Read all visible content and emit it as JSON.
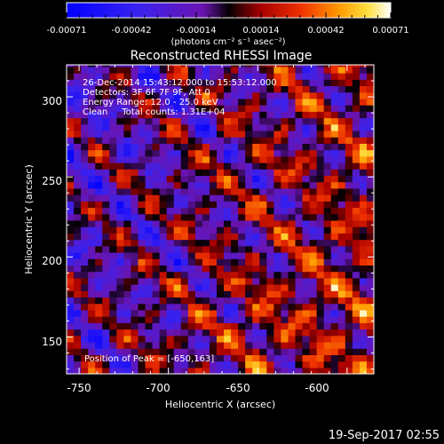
{
  "colorbar": {
    "ticks": [
      "-0.00071",
      "-0.00042",
      "-0.00014",
      "0.00014",
      "0.00042",
      "0.00071"
    ],
    "units": "(photons cm⁻² s⁻¹ asec⁻²)",
    "min": -0.00071,
    "max": 0.00071
  },
  "chart_data": {
    "type": "heatmap",
    "title": "Reconstructed RHESSI Image",
    "xlabel": "Heliocentric X (arcsec)",
    "ylabel": "Heliocentric Y (arcsec)",
    "xlim": [
      -757,
      -585
    ],
    "ylim": [
      127,
      320
    ],
    "x_ticks": [
      -750,
      -700,
      -650,
      -600
    ],
    "y_ticks": [
      150,
      200,
      250,
      300
    ],
    "annotations": [
      "26-Dec-2014 15:43:12.000 to 15:53:12.000",
      "Detectors: 3F 6F 7F 9F, Att 0",
      "Energy Range: 12.0 - 25.0 keV",
      "Clean     Total counts: 1.31E+04"
    ],
    "peak_label": "Position of Peak = [-650,163]",
    "peak": [
      -650,
      163
    ],
    "grid": false,
    "colormap": "blue-violet-black-red-orange-yellow-white",
    "pixel_size_arcsec": 4
  },
  "timestamp": "19-Sep-2017 02:55"
}
